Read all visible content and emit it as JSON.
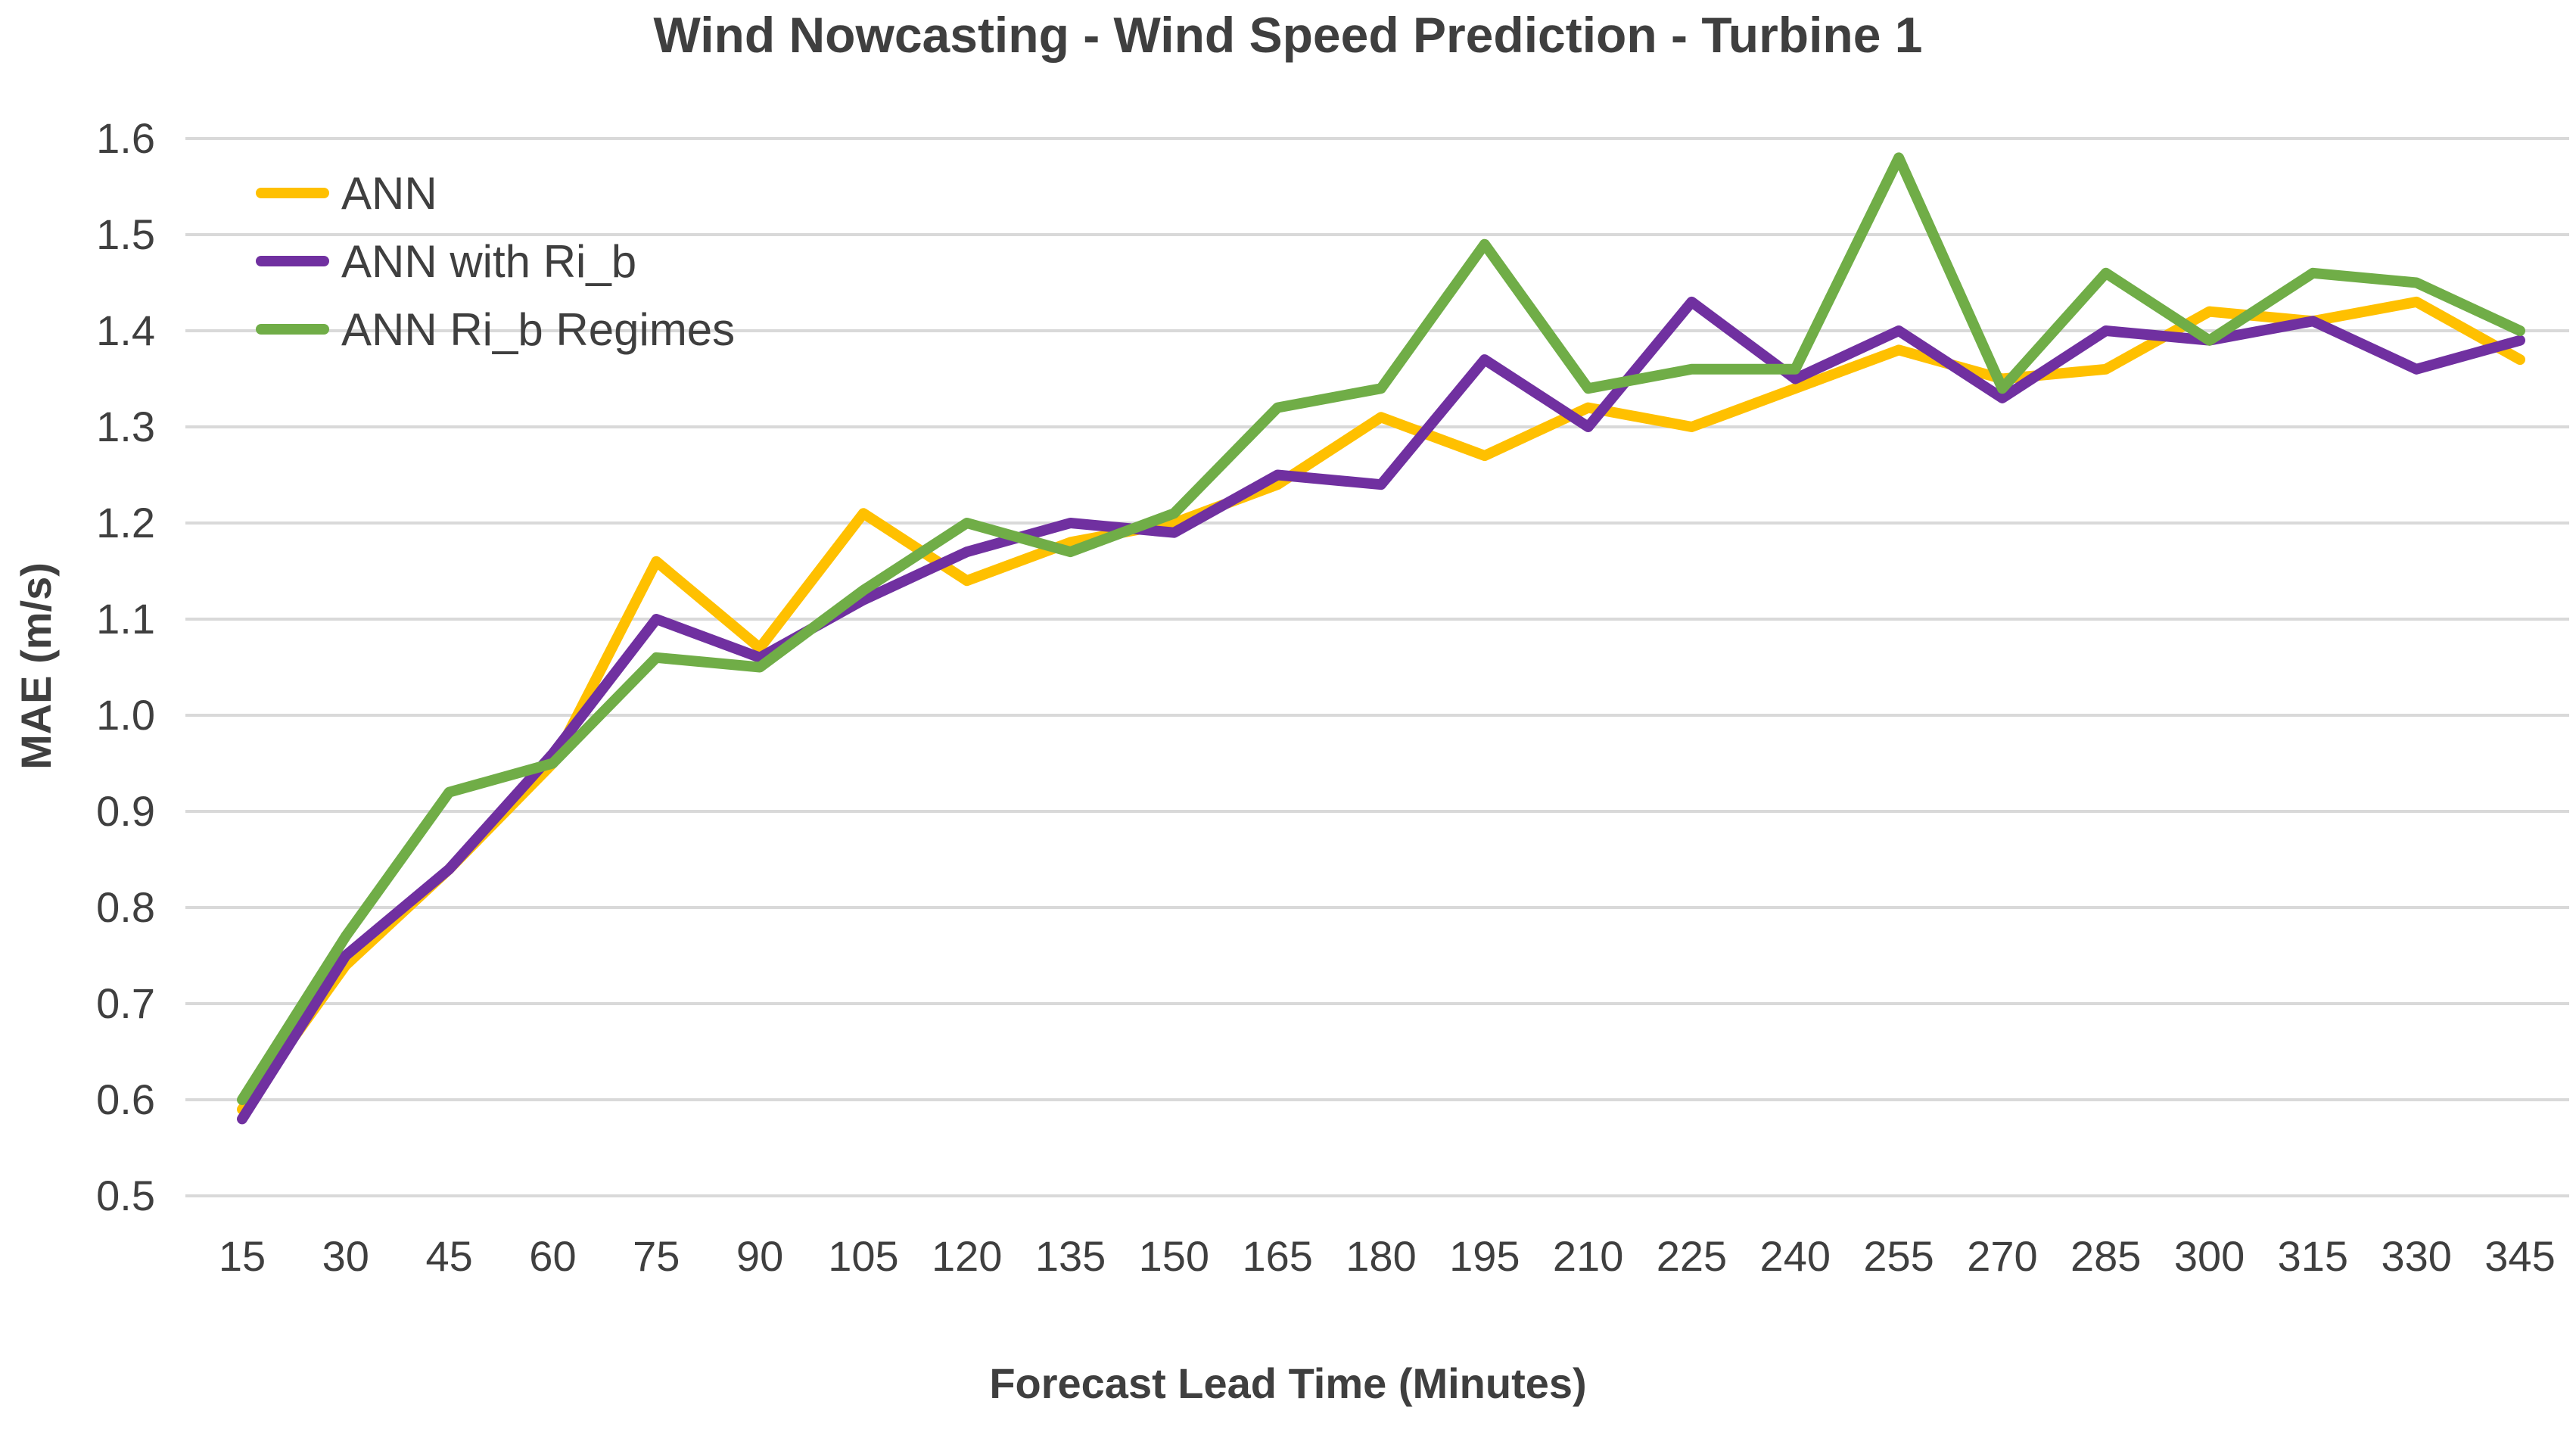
{
  "chart_data": {
    "type": "line",
    "title": "Wind Nowcasting - Wind Speed Prediction - Turbine 1",
    "xlabel": "Forecast Lead Time (Minutes)",
    "ylabel": "MAE (m/s)",
    "x": [
      15,
      30,
      45,
      60,
      75,
      90,
      105,
      120,
      135,
      150,
      165,
      180,
      195,
      210,
      225,
      240,
      255,
      270,
      285,
      300,
      315,
      330,
      345
    ],
    "ylim": [
      0.5,
      1.6
    ],
    "ytick_step": 0.1,
    "grid": true,
    "legend_position": "top-left-inside",
    "series": [
      {
        "name": "ANN",
        "color": "#FFC000",
        "values": [
          0.59,
          0.74,
          0.84,
          0.95,
          1.16,
          1.07,
          1.21,
          1.14,
          1.18,
          1.2,
          1.24,
          1.31,
          1.27,
          1.32,
          1.3,
          1.34,
          1.38,
          1.35,
          1.36,
          1.42,
          1.41,
          1.43,
          1.37
        ]
      },
      {
        "name": "ANN with Ri_b",
        "color": "#7030A0",
        "values": [
          0.58,
          0.75,
          0.84,
          0.96,
          1.1,
          1.06,
          1.12,
          1.17,
          1.2,
          1.19,
          1.25,
          1.24,
          1.37,
          1.3,
          1.43,
          1.35,
          1.4,
          1.33,
          1.4,
          1.39,
          1.41,
          1.36,
          1.39
        ]
      },
      {
        "name": "ANN Ri_b Regimes",
        "color": "#70AD47",
        "values": [
          0.6,
          0.77,
          0.92,
          0.95,
          1.06,
          1.05,
          1.13,
          1.2,
          1.17,
          1.21,
          1.32,
          1.34,
          1.49,
          1.34,
          1.36,
          1.36,
          1.58,
          1.34,
          1.46,
          1.39,
          1.46,
          1.45,
          1.4
        ]
      }
    ],
    "colors": {
      "text": "#3f3f3f",
      "gridline": "#d9d9d9",
      "background": "#ffffff"
    }
  }
}
